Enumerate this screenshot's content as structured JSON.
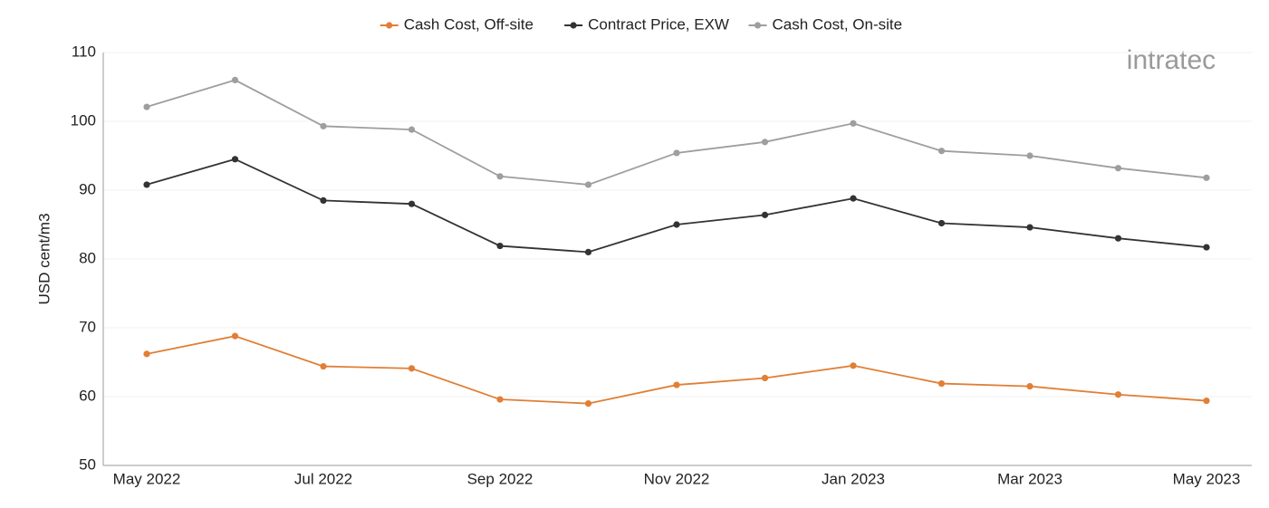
{
  "chart_data": {
    "type": "line",
    "y_label": "USD cent/m3",
    "logo": "intratec",
    "categories": [
      "May 2022",
      null,
      "Jul 2022",
      null,
      "Sep 2022",
      null,
      "Nov 2022",
      null,
      "Jan 2023",
      null,
      "Mar 2023",
      null,
      "May 2023"
    ],
    "series": [
      {
        "name": "Cash Cost, Off-site",
        "color": "#e07f35",
        "values": [
          66.2,
          68.8,
          64.4,
          64.1,
          59.6,
          59.0,
          61.7,
          62.7,
          64.5,
          61.9,
          61.5,
          60.3,
          59.4
        ]
      },
      {
        "name": "Contract Price, EXW",
        "color": "#333333",
        "values": [
          90.8,
          94.5,
          88.5,
          88.0,
          81.9,
          81.0,
          85.0,
          86.4,
          88.8,
          85.2,
          84.6,
          83.0,
          81.7
        ]
      },
      {
        "name": "Cash Cost, On-site",
        "color": "#9e9e9e",
        "values": [
          102.1,
          106.0,
          99.3,
          98.8,
          92.0,
          90.8,
          95.4,
          97.0,
          99.7,
          95.7,
          95.0,
          93.2,
          91.8
        ]
      }
    ],
    "ylim": [
      50,
      110
    ],
    "yticks": [
      50,
      60,
      70,
      80,
      90,
      100,
      110
    ],
    "grid": true,
    "legend": "top"
  }
}
